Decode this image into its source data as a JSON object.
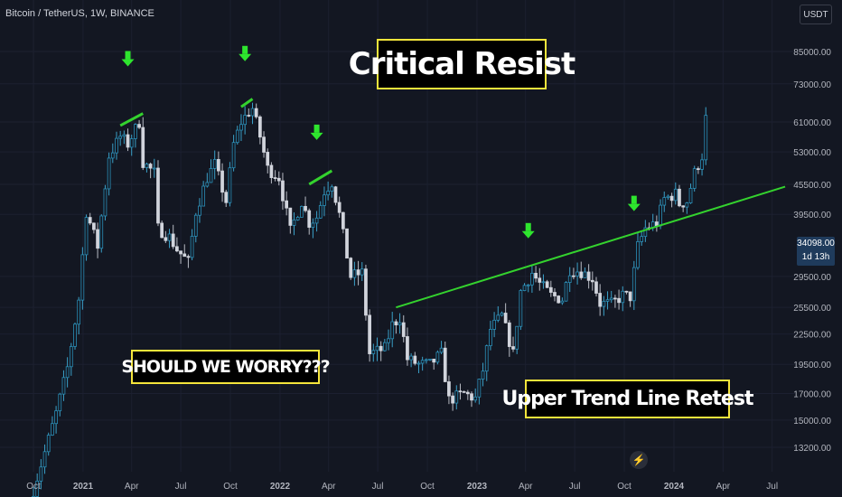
{
  "header": {
    "symbol": "Bitcoin / TetherUS, 1W, BINANCE",
    "currency": "USDT"
  },
  "annotations": {
    "critical": "Critical Resist",
    "worry": "SHOULD WE WORRY???",
    "retest": "Upper Trend Line Retest"
  },
  "price_tag": {
    "price": "34098.00",
    "countdown": "1d 13h"
  },
  "colors": {
    "background": "#131722",
    "trend_line": "#34d22e",
    "arrows": "#2ee52e",
    "box_border": "#f5e53b"
  },
  "icons": {
    "replay": "lightning-icon"
  },
  "chart_data": {
    "type": "candlestick",
    "title": "",
    "y_scale": "log",
    "y_ticks": [
      "85000.00",
      "73000.00",
      "61000.00",
      "53000.00",
      "45500.00",
      "39500.00",
      "29500.00",
      "25500.00",
      "22500.00",
      "19500.00",
      "17000.00",
      "15000.00",
      "13200.00"
    ],
    "x_ticks": [
      "Oct",
      "2021",
      "Apr",
      "Jul",
      "Oct",
      "2022",
      "Apr",
      "Jul",
      "Oct",
      "2023",
      "Apr",
      "Jul",
      "Oct",
      "2024",
      "Apr",
      "Jul"
    ],
    "x_tick_dates": [
      "2020-10-01",
      "2021-01-01",
      "2021-04-01",
      "2021-07-01",
      "2021-10-01",
      "2022-01-01",
      "2022-04-01",
      "2022-07-01",
      "2022-10-01",
      "2023-01-01",
      "2023-04-01",
      "2023-07-01",
      "2023-10-01",
      "2024-01-01",
      "2024-04-01",
      "2024-07-01"
    ],
    "bold_ticks": [
      "2021",
      "2022",
      "2023",
      "2024"
    ],
    "candle_interval": "1W",
    "close_path": [
      [
        "2020-10-01",
        10800
      ],
      [
        "2020-10-22",
        12900
      ],
      [
        "2020-11-12",
        15500
      ],
      [
        "2020-12-03",
        19200
      ],
      [
        "2020-12-24",
        26500
      ],
      [
        "2021-01-07",
        40000
      ],
      [
        "2021-01-28",
        34000
      ],
      [
        "2021-02-18",
        52000
      ],
      [
        "2021-03-11",
        57000
      ],
      [
        "2021-03-25",
        55000
      ],
      [
        "2021-04-08",
        59000
      ],
      [
        "2021-04-15",
        61000
      ],
      [
        "2021-04-22",
        50500
      ],
      [
        "2021-05-13",
        48000
      ],
      [
        "2021-05-20",
        37000
      ],
      [
        "2021-06-10",
        35500
      ],
      [
        "2021-06-24",
        33500
      ],
      [
        "2021-07-15",
        31500
      ],
      [
        "2021-07-29",
        40000
      ],
      [
        "2021-08-19",
        47000
      ],
      [
        "2021-09-02",
        50000
      ],
      [
        "2021-09-23",
        42000
      ],
      [
        "2021-10-07",
        55000
      ],
      [
        "2021-10-21",
        61000
      ],
      [
        "2021-11-04",
        64000
      ],
      [
        "2021-11-11",
        65000
      ],
      [
        "2021-11-25",
        57000
      ],
      [
        "2021-12-09",
        49000
      ],
      [
        "2021-12-30",
        47000
      ],
      [
        "2022-01-20",
        36500
      ],
      [
        "2022-02-10",
        42000
      ],
      [
        "2022-02-24",
        38000
      ],
      [
        "2022-03-10",
        39000
      ],
      [
        "2022-03-24",
        44000
      ],
      [
        "2022-04-07",
        46000
      ],
      [
        "2022-04-21",
        39500
      ],
      [
        "2022-05-12",
        29500
      ],
      [
        "2022-06-02",
        30000
      ],
      [
        "2022-06-16",
        20500
      ],
      [
        "2022-07-14",
        21000
      ],
      [
        "2022-07-28",
        23500
      ],
      [
        "2022-08-11",
        24300
      ],
      [
        "2022-08-25",
        20000
      ],
      [
        "2022-09-15",
        19500
      ],
      [
        "2022-10-06",
        19500
      ],
      [
        "2022-10-27",
        20500
      ],
      [
        "2022-11-10",
        16500
      ],
      [
        "2022-12-08",
        17000
      ],
      [
        "2022-12-29",
        16600
      ],
      [
        "2023-01-12",
        19000
      ],
      [
        "2023-01-26",
        23000
      ],
      [
        "2023-02-16",
        24500
      ],
      [
        "2023-03-09",
        20500
      ],
      [
        "2023-03-23",
        27500
      ],
      [
        "2023-04-13",
        30000
      ],
      [
        "2023-04-27",
        28500
      ],
      [
        "2023-05-18",
        27000
      ],
      [
        "2023-06-08",
        26500
      ],
      [
        "2023-06-22",
        30500
      ],
      [
        "2023-07-13",
        30200
      ],
      [
        "2023-08-03",
        29200
      ],
      [
        "2023-08-17",
        26000
      ],
      [
        "2023-09-07",
        25900
      ],
      [
        "2023-09-28",
        27000
      ],
      [
        "2023-10-12",
        26800
      ],
      [
        "2023-10-26",
        34000
      ],
      [
        "2023-11-09",
        37000
      ],
      [
        "2023-11-30",
        38000
      ],
      [
        "2023-12-14",
        42500
      ],
      [
        "2024-01-04",
        43500
      ],
      [
        "2024-01-11",
        41500
      ],
      [
        "2024-01-25",
        42000
      ],
      [
        "2024-02-08",
        48000
      ],
      [
        "2024-02-22",
        52000
      ],
      [
        "2024-02-29",
        62000
      ]
    ],
    "green_dashes": [
      {
        "from": [
          "2021-03-11",
          60000
        ],
        "to": [
          "2021-04-22",
          63500
        ]
      },
      {
        "from": [
          "2021-10-21",
          65500
        ],
        "to": [
          "2021-11-11",
          68000
        ]
      },
      {
        "from": [
          "2022-02-24",
          45500
        ],
        "to": [
          "2022-04-07",
          48500
        ]
      }
    ],
    "down_arrows": [
      {
        "date": "2021-03-25",
        "price": 82000
      },
      {
        "date": "2021-10-28",
        "price": 84000
      },
      {
        "date": "2022-03-10",
        "price": 58000
      },
      {
        "date": "2023-04-06",
        "price": 36500
      },
      {
        "date": "2023-10-19",
        "price": 41500
      }
    ],
    "trend_line": {
      "from": [
        "2022-08-04",
        25500
      ],
      "to": [
        "2024-07-25",
        45000
      ]
    }
  }
}
